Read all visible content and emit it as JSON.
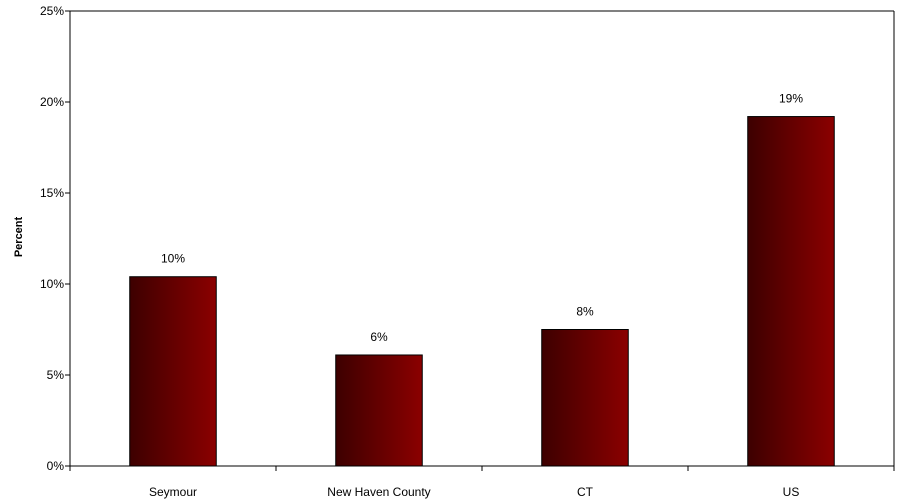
{
  "chart_data": {
    "type": "bar",
    "categories": [
      "Seymour",
      "New Haven County",
      "CT",
      "US"
    ],
    "values": [
      10.4,
      6.1,
      7.5,
      19.2
    ],
    "data_labels": [
      "10%",
      "6%",
      "8%",
      "19%"
    ],
    "title": "",
    "xlabel": "",
    "ylabel": "Percent",
    "ylim": [
      0,
      25
    ],
    "yticks": [
      0,
      5,
      10,
      15,
      20,
      25
    ],
    "ytick_labels": [
      "0%",
      "5%",
      "10%",
      "15%",
      "20%",
      "25%"
    ],
    "grid": false,
    "legend": "none",
    "bar_color_dark": "#3d0000",
    "bar_color_light": "#8b0000"
  }
}
